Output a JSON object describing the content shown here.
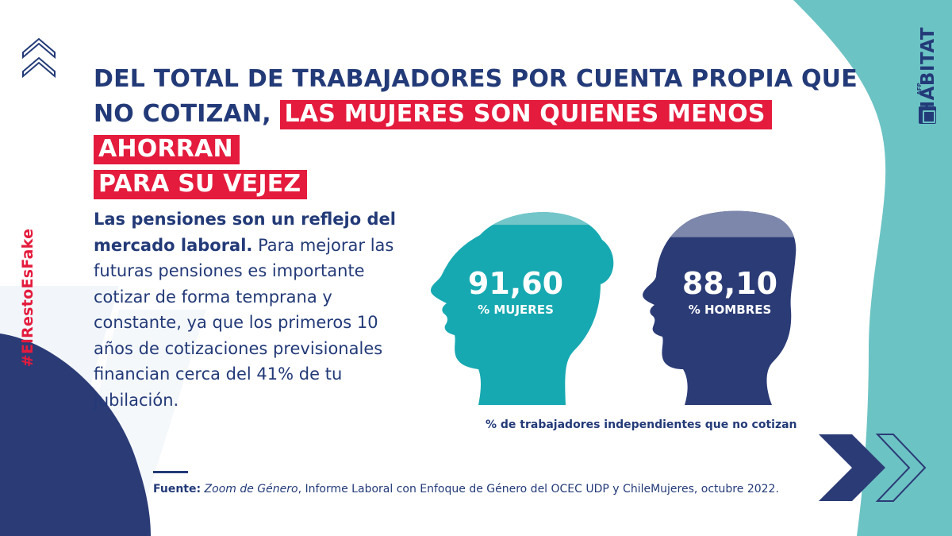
{
  "hashtag": "#ElRestoEsFake",
  "logo": {
    "small_text": "AFP",
    "brand": "HABITAT"
  },
  "title": {
    "part1": "DEL TOTAL DE TRABAJADORES POR CUENTA PROPIA QUE NO COTIZAN, ",
    "highlight1": "LAS MUJERES SON QUIENES MENOS AHORRAN",
    "highlight2": "PARA SU VEJEZ"
  },
  "body": {
    "bold": "Las pensiones son un reflejo del mercado laboral.",
    "rest": " Para mejorar las futuras pensiones es importante cotizar de forma temprana y constante, ya que los primeros 10 años de cotizaciones previsionales financian cerca del 41% de tu jubilación."
  },
  "stats": {
    "women": {
      "value": "91,60",
      "label": "% MUJERES",
      "fill_percent": 91.6
    },
    "men": {
      "value": "88,10",
      "label": "% HOMBRES",
      "fill_percent": 88.1
    }
  },
  "caption": "% de trabajadores independientes que no cotizan",
  "source": {
    "label": "Fuente:",
    "italic": "Zoom de Género",
    "rest": ", Informe Laboral con Enfoque de Género del OCEC UDP y ChileMujeres, octubre 2022."
  },
  "colors": {
    "navy": "#233a78",
    "red": "#e41b3d",
    "teal": "#6cc3c4",
    "woman_head": "#17a9b1",
    "man_head": "#2b3b76"
  }
}
